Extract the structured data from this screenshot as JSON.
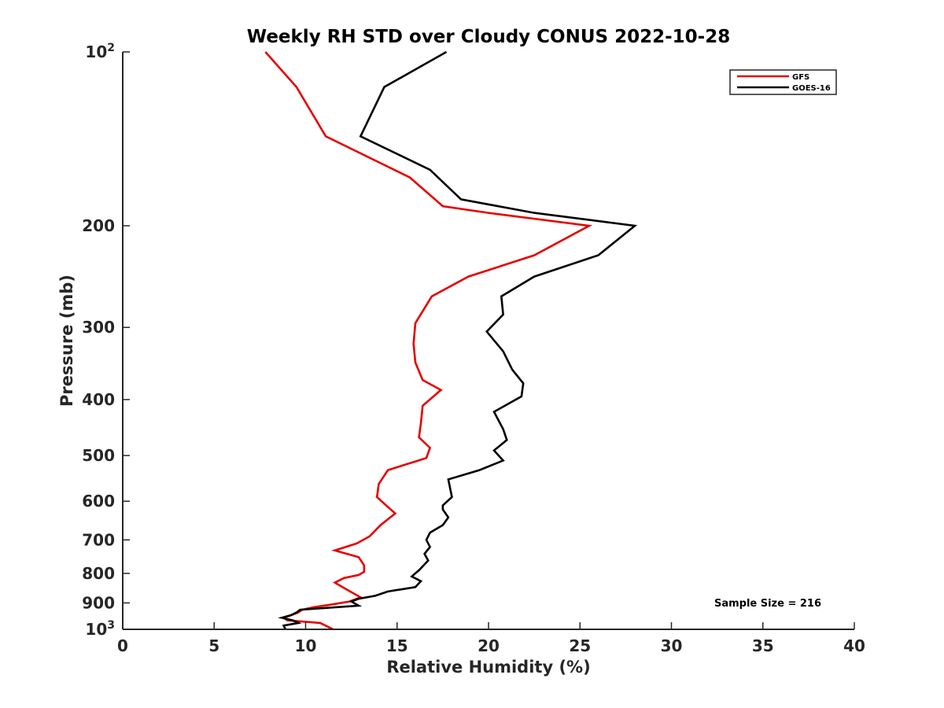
{
  "chart_data": {
    "type": "line",
    "title": "Weekly RH STD over Cloudy CONUS 2022-10-28",
    "xlabel": "Relative Humidity (%)",
    "ylabel": "Pressure (mb)",
    "xlim": [
      0,
      40
    ],
    "ylim": [
      100,
      1000
    ],
    "y_scale": "log",
    "y_reversed": true,
    "grid": false,
    "legend_position": "top-right",
    "x_ticks": [
      0,
      5,
      10,
      15,
      20,
      25,
      30,
      35,
      40
    ],
    "y_ticks": [
      {
        "value": 100,
        "label": "10",
        "sup": "2"
      },
      {
        "value": 200,
        "label": "200"
      },
      {
        "value": 300,
        "label": "300"
      },
      {
        "value": 400,
        "label": "400"
      },
      {
        "value": 500,
        "label": "500"
      },
      {
        "value": 600,
        "label": "600"
      },
      {
        "value": 700,
        "label": "700"
      },
      {
        "value": 800,
        "label": "800"
      },
      {
        "value": 900,
        "label": "900"
      },
      {
        "value": 1000,
        "label": "10",
        "sup": "3"
      }
    ],
    "series": [
      {
        "name": "GFS",
        "color": "#e60000",
        "x": [
          7.8,
          9.5,
          11.1,
          15.7,
          17.5,
          20.0,
          25.5,
          22.5,
          18.9,
          16.9,
          16.0,
          15.9,
          16.0,
          16.4,
          17.4,
          16.4,
          16.3,
          16.2,
          16.8,
          16.6,
          14.5,
          14.0,
          13.9,
          14.4,
          14.9,
          14.1,
          13.5,
          12.8,
          11.6,
          12.9,
          13.2,
          13.2,
          12.9,
          12.1,
          11.6,
          12.3,
          13.0,
          12.4,
          11.5,
          10.5,
          9.8,
          9.6,
          9.2,
          8.8,
          9.0,
          10.8,
          11.5
        ],
        "y": [
          100,
          115,
          140,
          165,
          185,
          190,
          200,
          225,
          245,
          265,
          295,
          320,
          345,
          370,
          385,
          410,
          440,
          465,
          485,
          505,
          530,
          560,
          590,
          610,
          630,
          660,
          690,
          710,
          730,
          750,
          775,
          795,
          805,
          815,
          830,
          855,
          880,
          895,
          905,
          915,
          925,
          935,
          945,
          955,
          965,
          975,
          1000
        ]
      },
      {
        "name": "GOES-16",
        "color": "#000000",
        "x": [
          17.7,
          14.3,
          13.0,
          16.8,
          18.5,
          22.5,
          28.0,
          26.0,
          22.5,
          20.7,
          20.8,
          19.9,
          20.8,
          21.3,
          21.9,
          21.8,
          20.3,
          20.8,
          21.0,
          20.3,
          20.8,
          19.5,
          17.8,
          17.9,
          18.0,
          17.5,
          17.5,
          17.8,
          17.5,
          16.8,
          16.6,
          16.8,
          16.5,
          16.7,
          16.2,
          15.8,
          16.3,
          16.0,
          14.5,
          13.8,
          12.9,
          12.5,
          12.9,
          9.7,
          9.5,
          9.2,
          8.7,
          9.3,
          9.6,
          8.8,
          8.9
        ],
        "y": [
          100,
          115,
          140,
          160,
          180,
          190,
          200,
          225,
          245,
          265,
          285,
          305,
          330,
          355,
          375,
          395,
          420,
          450,
          470,
          490,
          510,
          530,
          550,
          570,
          590,
          610,
          620,
          640,
          660,
          680,
          700,
          720,
          740,
          760,
          790,
          810,
          825,
          845,
          860,
          875,
          885,
          895,
          910,
          925,
          935,
          945,
          955,
          965,
          975,
          985,
          1000
        ]
      }
    ],
    "annotations": [
      "Sample Size = 216"
    ]
  }
}
